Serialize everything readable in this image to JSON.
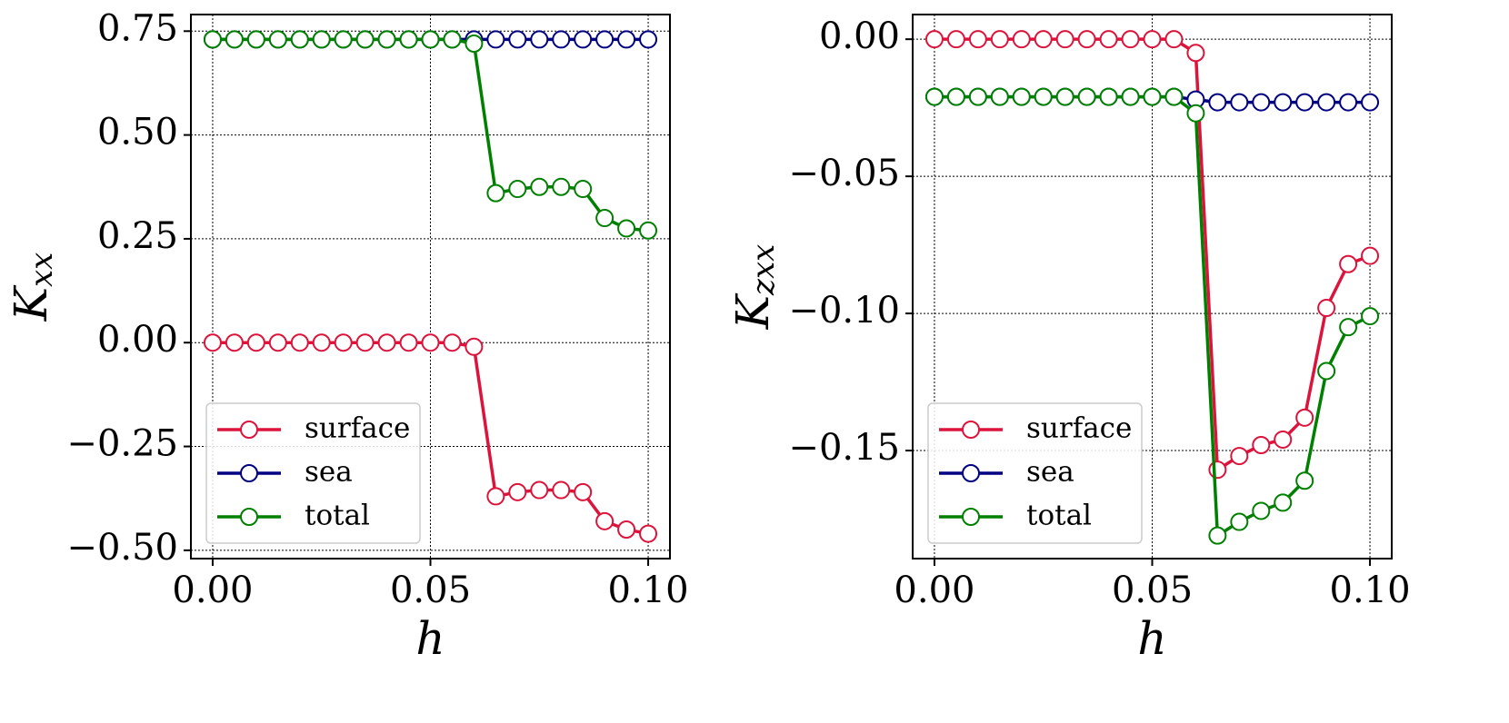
{
  "chart_data": [
    {
      "type": "line",
      "xlabel": "h",
      "ylabel": "K",
      "ylabel_subscript": "xx",
      "x": [
        0,
        0.005,
        0.01,
        0.015,
        0.02,
        0.025,
        0.03,
        0.035,
        0.04,
        0.045,
        0.05,
        0.055,
        0.06,
        0.065,
        0.07,
        0.075,
        0.08,
        0.085,
        0.09,
        0.095,
        0.1
      ],
      "series": [
        {
          "name": "surface",
          "color": "#dc143c",
          "values": [
            0,
            0,
            0,
            0,
            0,
            0,
            0,
            0,
            0,
            0,
            0,
            0,
            -0.01,
            -0.37,
            -0.36,
            -0.355,
            -0.355,
            -0.36,
            -0.43,
            -0.45,
            -0.46
          ]
        },
        {
          "name": "sea",
          "color": "#000080",
          "values": [
            0.73,
            0.73,
            0.73,
            0.73,
            0.73,
            0.73,
            0.73,
            0.73,
            0.73,
            0.73,
            0.73,
            0.73,
            0.73,
            0.73,
            0.73,
            0.73,
            0.73,
            0.73,
            0.73,
            0.73,
            0.73
          ]
        },
        {
          "name": "total",
          "color": "#008000",
          "values": [
            0.73,
            0.73,
            0.73,
            0.73,
            0.73,
            0.73,
            0.73,
            0.73,
            0.73,
            0.73,
            0.73,
            0.73,
            0.72,
            0.36,
            0.37,
            0.375,
            0.375,
            0.37,
            0.3,
            0.275,
            0.27
          ]
        }
      ],
      "xlim": [
        -0.005,
        0.105
      ],
      "xticks": [
        {
          "value": 0,
          "label": "0.00"
        },
        {
          "value": 0.05,
          "label": "0.05"
        },
        {
          "value": 0.1,
          "label": "0.10"
        }
      ],
      "ylim": [
        -0.52,
        0.79
      ],
      "yticks": [
        {
          "value": -0.5,
          "label": "−0.50"
        },
        {
          "value": -0.25,
          "label": "−0.25"
        },
        {
          "value": 0,
          "label": "0.00"
        },
        {
          "value": 0.25,
          "label": "0.25"
        },
        {
          "value": 0.5,
          "label": "0.50"
        },
        {
          "value": 0.75,
          "label": "0.75"
        }
      ],
      "grid": true,
      "legend": "lower left"
    },
    {
      "type": "line",
      "xlabel": "h",
      "ylabel": "K",
      "ylabel_subscript": "zxx",
      "x": [
        0,
        0.005,
        0.01,
        0.015,
        0.02,
        0.025,
        0.03,
        0.035,
        0.04,
        0.045,
        0.05,
        0.055,
        0.06,
        0.065,
        0.07,
        0.075,
        0.08,
        0.085,
        0.09,
        0.095,
        0.1
      ],
      "series": [
        {
          "name": "surface",
          "color": "#dc143c",
          "values": [
            0,
            0,
            0,
            0,
            0,
            0,
            0,
            0,
            0,
            0,
            0,
            0,
            -0.005,
            -0.157,
            -0.152,
            -0.148,
            -0.146,
            -0.138,
            -0.098,
            -0.082,
            -0.079
          ]
        },
        {
          "name": "sea",
          "color": "#000080",
          "values": [
            -0.021,
            -0.021,
            -0.021,
            -0.021,
            -0.021,
            -0.021,
            -0.021,
            -0.021,
            -0.021,
            -0.021,
            -0.021,
            -0.021,
            -0.022,
            -0.023,
            -0.023,
            -0.023,
            -0.023,
            -0.023,
            -0.023,
            -0.023,
            -0.023
          ]
        },
        {
          "name": "total",
          "color": "#008000",
          "values": [
            -0.021,
            -0.021,
            -0.021,
            -0.021,
            -0.021,
            -0.021,
            -0.021,
            -0.021,
            -0.021,
            -0.021,
            -0.021,
            -0.021,
            -0.027,
            -0.181,
            -0.176,
            -0.172,
            -0.169,
            -0.161,
            -0.121,
            -0.105,
            -0.101
          ]
        }
      ],
      "xlim": [
        -0.005,
        0.105
      ],
      "xticks": [
        {
          "value": 0,
          "label": "0.00"
        },
        {
          "value": 0.05,
          "label": "0.05"
        },
        {
          "value": 0.1,
          "label": "0.10"
        }
      ],
      "ylim": [
        -0.1894,
        0.009
      ],
      "yticks": [
        {
          "value": -0.15,
          "label": "−0.15"
        },
        {
          "value": -0.1,
          "label": "−0.10"
        },
        {
          "value": -0.05,
          "label": "−0.05"
        },
        {
          "value": 0,
          "label": "0.00"
        }
      ],
      "grid": true,
      "legend": "lower left"
    }
  ]
}
